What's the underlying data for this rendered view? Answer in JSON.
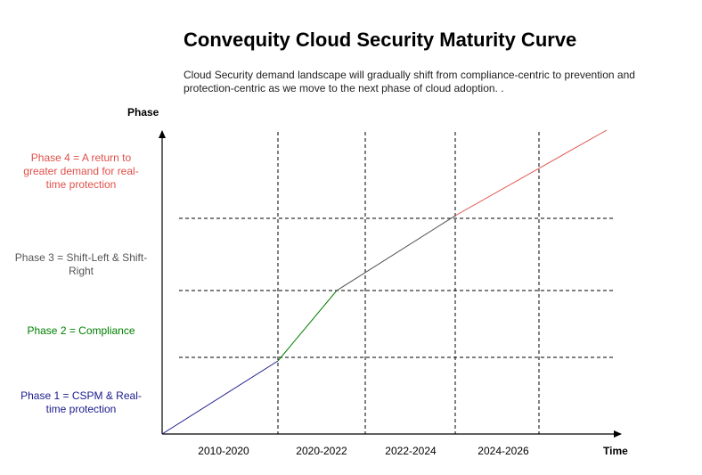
{
  "title": "Convequity Cloud Security Maturity Curve",
  "subtitle": "Cloud Security demand landscape will gradually shift from compliance-centric to prevention and protection-centric as we move to the next phase of cloud adoption. .",
  "axes": {
    "y_label": "Phase",
    "x_label": "Time"
  },
  "phases": [
    {
      "label": "Phase 1 = CSPM & Real-time protection",
      "color": "#1a1a8c"
    },
    {
      "label": "Phase 2 = Compliance",
      "color": "#008000"
    },
    {
      "label": "Phase 3 = Shift-Left & Shift-Right",
      "color": "#555555"
    },
    {
      "label": "Phase 4 = A return to greater demand for real-time protection",
      "color": "#e0504a"
    }
  ],
  "time_periods": [
    "2010-2020",
    "2020-2022",
    "2022-2024",
    "2024-2026"
  ],
  "curve_segments": [
    {
      "phase": 1,
      "color": "#1a1a8c"
    },
    {
      "phase": 2,
      "color": "#008000"
    },
    {
      "phase": 3,
      "color": "#555555"
    },
    {
      "phase": 4,
      "color": "#e0504a"
    }
  ]
}
